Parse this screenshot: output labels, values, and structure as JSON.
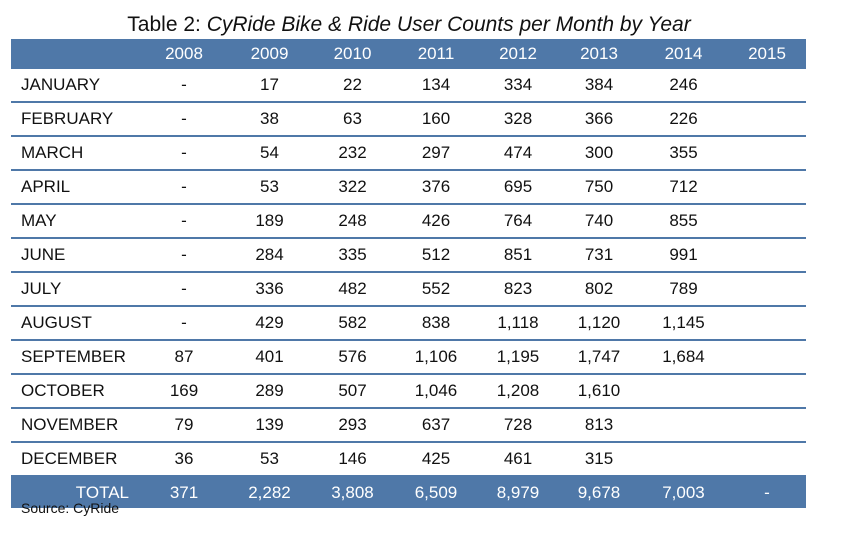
{
  "title": {
    "prefix": "Table 2: ",
    "italic": "CyRide Bike & Ride User Counts per Month by Year"
  },
  "table": {
    "corner": "",
    "years": [
      "2008",
      "2009",
      "2010",
      "2011",
      "2012",
      "2013",
      "2014",
      "2015"
    ],
    "rows": [
      {
        "month": "JANUARY",
        "values": [
          "-",
          "17",
          "22",
          "134",
          "334",
          "384",
          "246",
          ""
        ]
      },
      {
        "month": "FEBRUARY",
        "values": [
          "-",
          "38",
          "63",
          "160",
          "328",
          "366",
          "226",
          ""
        ]
      },
      {
        "month": "MARCH",
        "values": [
          "-",
          "54",
          "232",
          "297",
          "474",
          "300",
          "355",
          ""
        ]
      },
      {
        "month": "APRIL",
        "values": [
          "-",
          "53",
          "322",
          "376",
          "695",
          "750",
          "712",
          ""
        ]
      },
      {
        "month": "MAY",
        "values": [
          "-",
          "189",
          "248",
          "426",
          "764",
          "740",
          "855",
          ""
        ]
      },
      {
        "month": "JUNE",
        "values": [
          "-",
          "284",
          "335",
          "512",
          "851",
          "731",
          "991",
          ""
        ]
      },
      {
        "month": "JULY",
        "values": [
          "-",
          "336",
          "482",
          "552",
          "823",
          "802",
          "789",
          ""
        ]
      },
      {
        "month": "AUGUST",
        "values": [
          "-",
          "429",
          "582",
          "838",
          "1,118",
          "1,120",
          "1,145",
          ""
        ]
      },
      {
        "month": "SEPTEMBER",
        "values": [
          "87",
          "401",
          "576",
          "1,106",
          "1,195",
          "1,747",
          "1,684",
          ""
        ]
      },
      {
        "month": "OCTOBER",
        "values": [
          "169",
          "289",
          "507",
          "1,046",
          "1,208",
          "1,610",
          "",
          ""
        ]
      },
      {
        "month": "NOVEMBER",
        "values": [
          "79",
          "139",
          "293",
          "637",
          "728",
          "813",
          "",
          ""
        ]
      },
      {
        "month": "DECEMBER",
        "values": [
          "36",
          "53",
          "146",
          "425",
          "461",
          "315",
          "",
          ""
        ]
      }
    ],
    "total": {
      "label": "TOTAL",
      "values": [
        "371",
        "2,282",
        "3,808",
        "6,509",
        "8,979",
        "9,678",
        "7,003",
        "-"
      ]
    }
  },
  "source": "Source: CyRide",
  "colors": {
    "header_bg": "#4f78a8",
    "header_text": "#ffffff",
    "row_rule": "#4f78a8"
  }
}
